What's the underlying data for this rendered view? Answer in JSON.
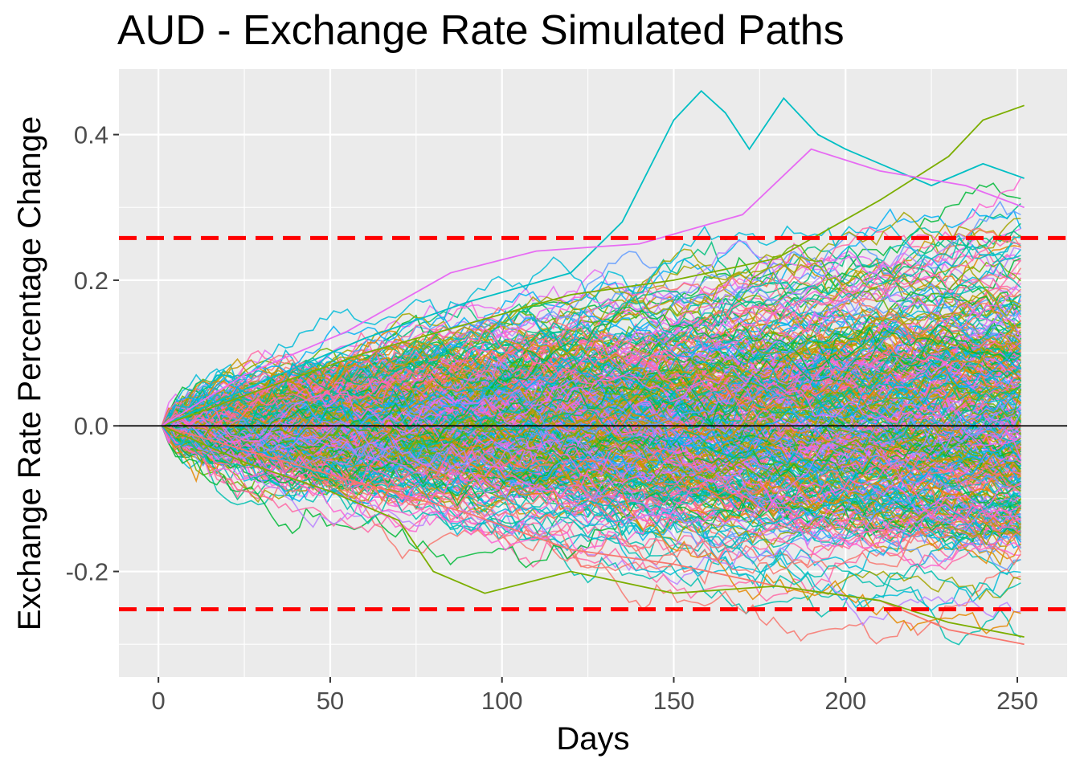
{
  "chart_data": {
    "type": "line",
    "title": "AUD - Exchange Rate Simulated Paths",
    "xlabel": "Days",
    "ylabel": "Exchange Rate Percentage Change",
    "x_ticks": [
      0,
      50,
      100,
      150,
      200,
      250
    ],
    "x_tick_labels": [
      "0",
      "50",
      "100",
      "150",
      "200",
      "250"
    ],
    "y_ticks": [
      -0.2,
      0.0,
      0.2,
      0.4
    ],
    "y_tick_labels": [
      "-0.2",
      "0.0",
      "0.2",
      "0.4"
    ],
    "xlim": [
      -11.5,
      264.5
    ],
    "ylim": [
      -0.345,
      0.49
    ],
    "days_range": [
      1,
      252
    ],
    "grid": true,
    "legend": "none",
    "reference_lines": [
      {
        "kind": "horizontal",
        "y": 0.0,
        "color": "#000000",
        "style": "solid"
      },
      {
        "kind": "horizontal",
        "y": 0.258,
        "color": "#ff0000",
        "style": "dashed"
      },
      {
        "kind": "horizontal",
        "y": -0.252,
        "color": "#ff0000",
        "style": "dashed"
      }
    ],
    "series": [
      {
        "color": "#00bfc4",
        "values": [
          [
            1,
            0
          ],
          [
            30,
            0.06
          ],
          [
            60,
            0.12
          ],
          [
            90,
            0.17
          ],
          [
            120,
            0.21
          ],
          [
            135,
            0.28
          ],
          [
            150,
            0.42
          ],
          [
            158,
            0.46
          ],
          [
            165,
            0.43
          ],
          [
            172,
            0.38
          ],
          [
            182,
            0.45
          ],
          [
            192,
            0.4
          ],
          [
            200,
            0.38
          ],
          [
            225,
            0.33
          ],
          [
            240,
            0.36
          ],
          [
            252,
            0.34
          ]
        ]
      },
      {
        "color": "#7cae00",
        "values": [
          [
            1,
            0
          ],
          [
            30,
            0.05
          ],
          [
            60,
            0.1
          ],
          [
            90,
            0.14
          ],
          [
            120,
            0.18
          ],
          [
            150,
            0.2
          ],
          [
            180,
            0.23
          ],
          [
            210,
            0.31
          ],
          [
            230,
            0.37
          ],
          [
            240,
            0.42
          ],
          [
            252,
            0.44
          ]
        ]
      },
      {
        "color": "#e76bf3",
        "values": [
          [
            1,
            0
          ],
          [
            25,
            0.07
          ],
          [
            55,
            0.13
          ],
          [
            85,
            0.21
          ],
          [
            110,
            0.24
          ],
          [
            140,
            0.25
          ],
          [
            170,
            0.29
          ],
          [
            190,
            0.38
          ],
          [
            210,
            0.35
          ],
          [
            235,
            0.33
          ],
          [
            252,
            0.3
          ]
        ]
      },
      {
        "color": "#f8766d",
        "values": [
          [
            1,
            0
          ],
          [
            30,
            -0.04
          ],
          [
            60,
            -0.08
          ],
          [
            90,
            -0.12
          ],
          [
            120,
            -0.17
          ],
          [
            150,
            -0.19
          ],
          [
            180,
            -0.22
          ],
          [
            210,
            -0.24
          ],
          [
            230,
            -0.28
          ],
          [
            252,
            -0.3
          ]
        ]
      },
      {
        "color": "#7cae00",
        "values": [
          [
            1,
            0
          ],
          [
            25,
            -0.05
          ],
          [
            50,
            -0.09
          ],
          [
            70,
            -0.13
          ],
          [
            80,
            -0.2
          ],
          [
            95,
            -0.23
          ],
          [
            120,
            -0.2
          ],
          [
            150,
            -0.23
          ],
          [
            180,
            -0.22
          ],
          [
            210,
            -0.24
          ],
          [
            230,
            -0.27
          ],
          [
            252,
            -0.29
          ]
        ]
      }
    ],
    "band_colors": [
      "#f8766d",
      "#e58700",
      "#c99800",
      "#a3a500",
      "#6bb100",
      "#00ba38",
      "#00bf7d",
      "#00c0af",
      "#00bcd8",
      "#00b0f6",
      "#619cff",
      "#b983ff",
      "#e76bf3",
      "#fd61d1",
      "#ff67a4"
    ]
  }
}
